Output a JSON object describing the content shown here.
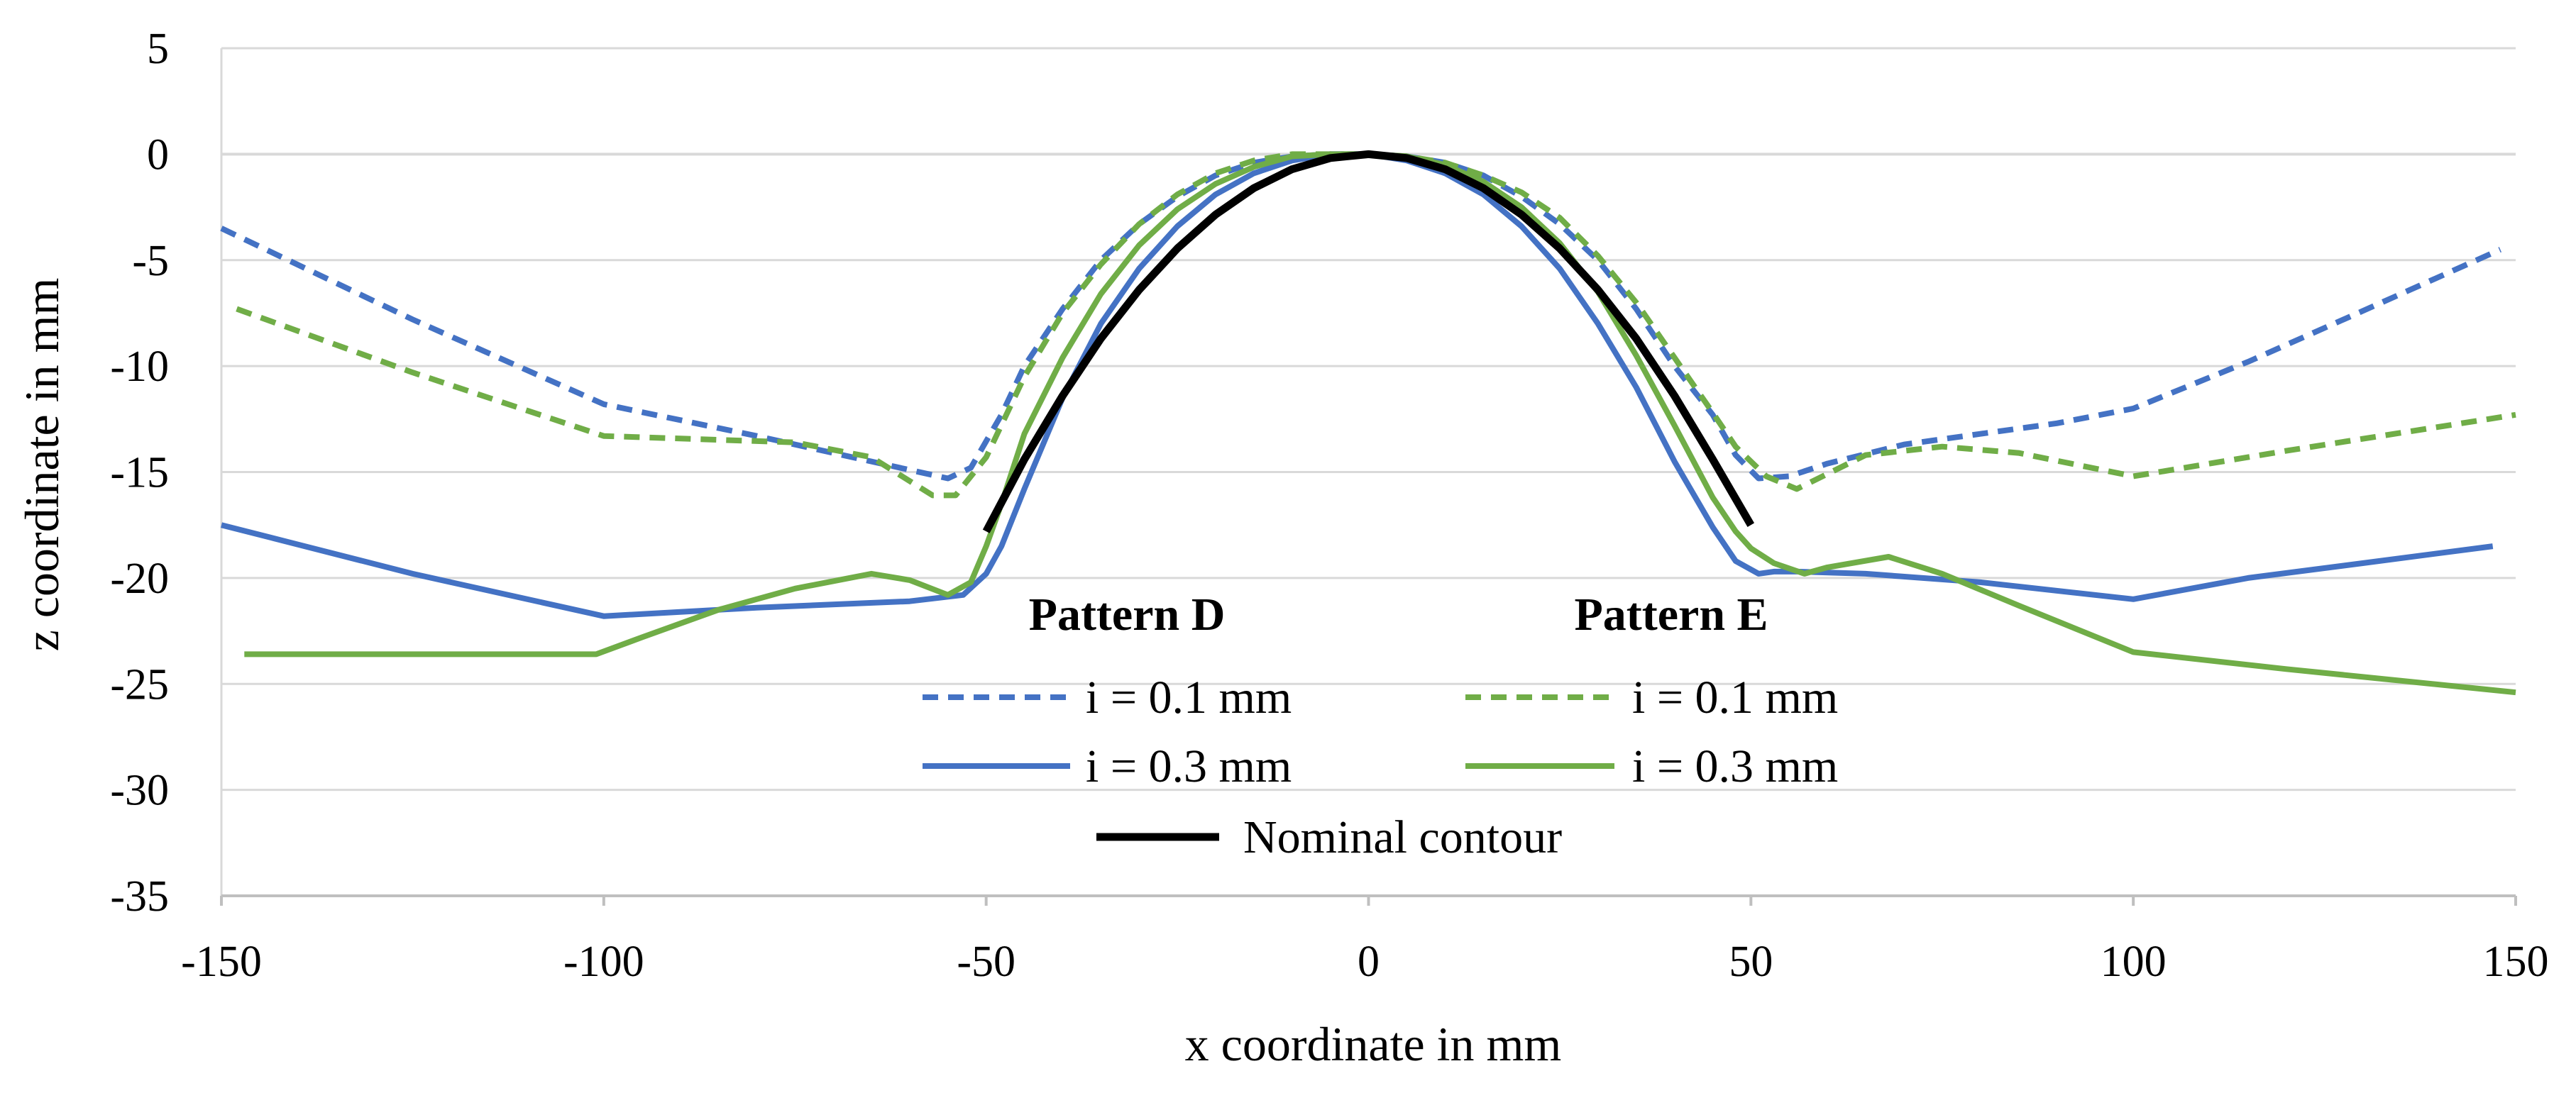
{
  "chart_data": {
    "type": "line",
    "title": "",
    "xlabel": "x coordinate in mm",
    "ylabel": "z coordinate in mm",
    "xlim": [
      -150,
      150
    ],
    "ylim": [
      -35,
      5
    ],
    "xticks": [
      -150,
      -100,
      -50,
      0,
      50,
      100,
      150
    ],
    "yticks": [
      5,
      0,
      -5,
      -10,
      -15,
      -20,
      -25,
      -30,
      -35
    ],
    "xtick_labels": [
      "-150",
      "-100",
      "-50",
      "0",
      "50",
      "100",
      "150"
    ],
    "ytick_labels": [
      "5",
      "0",
      "-5",
      "-10",
      "-15",
      "-20",
      "-25",
      "-30",
      "-35"
    ],
    "grid": "horizontal",
    "legend_groups": [
      "Pattern D",
      "Pattern E"
    ],
    "series": [
      {
        "name": "i = 0.1 mm",
        "group": "Pattern D",
        "color": "#4472C4",
        "dash": "dashed",
        "x": [
          -150,
          -125,
          -100,
          -80,
          -65,
          -55,
          -52,
          -48,
          -45,
          -40,
          -35,
          -30,
          -25,
          -20,
          -15,
          -10,
          -5,
          0,
          5,
          10,
          15,
          20,
          25,
          30,
          35,
          40,
          45,
          48,
          51,
          55,
          60,
          70,
          80,
          90,
          100,
          115,
          130,
          148
        ],
        "y": [
          -3.5,
          -7.8,
          -11.8,
          -13.3,
          -14.5,
          -15.3,
          -14.8,
          -12.3,
          -10.0,
          -7.3,
          -5.0,
          -3.3,
          -2.0,
          -1.0,
          -0.4,
          -0.1,
          0,
          0,
          -0.1,
          -0.4,
          -1.0,
          -2.0,
          -3.3,
          -5.0,
          -7.3,
          -10.0,
          -12.3,
          -14.2,
          -15.3,
          -15.2,
          -14.6,
          -13.7,
          -13.2,
          -12.7,
          -12.0,
          -9.8,
          -7.4,
          -4.5
        ]
      },
      {
        "name": "i = 0.3 mm",
        "group": "Pattern D",
        "color": "#4472C4",
        "dash": "solid",
        "x": [
          -150,
          -125,
          -100,
          -80,
          -60,
          -53,
          -50,
          -48,
          -45,
          -40,
          -35,
          -30,
          -25,
          -20,
          -15,
          -10,
          -5,
          0,
          5,
          10,
          15,
          20,
          25,
          30,
          35,
          40,
          45,
          48,
          51,
          53,
          56,
          65,
          80,
          100,
          115,
          130,
          147
        ],
        "y": [
          -17.5,
          -19.8,
          -21.8,
          -21.4,
          -21.1,
          -20.8,
          -19.8,
          -18.5,
          -15.8,
          -11.5,
          -8.0,
          -5.4,
          -3.4,
          -1.9,
          -0.9,
          -0.3,
          0,
          0,
          -0.3,
          -0.9,
          -1.9,
          -3.4,
          -5.4,
          -8.0,
          -11.0,
          -14.5,
          -17.6,
          -19.2,
          -19.8,
          -19.7,
          -19.7,
          -19.8,
          -20.2,
          -21.0,
          -20.0,
          -19.3,
          -18.5
        ]
      },
      {
        "name": "i = 0.1 mm",
        "group": "Pattern E",
        "color": "#70AD47",
        "dash": "dashed",
        "x": [
          -148,
          -125,
          -100,
          -75,
          -65,
          -57,
          -54,
          -50,
          -45,
          -40,
          -35,
          -30,
          -25,
          -20,
          -15,
          -10,
          -5,
          0,
          5,
          10,
          15,
          20,
          25,
          30,
          35,
          40,
          45,
          48,
          52,
          56,
          65,
          75,
          85,
          100,
          120,
          150
        ],
        "y": [
          -7.3,
          -10.3,
          -13.3,
          -13.6,
          -14.3,
          -16.1,
          -16.1,
          -14.3,
          -10.5,
          -7.5,
          -5.2,
          -3.3,
          -1.9,
          -0.9,
          -0.3,
          0,
          0,
          0,
          -0.1,
          -0.4,
          -1.0,
          -1.8,
          -3.0,
          -4.8,
          -7.0,
          -9.6,
          -12.2,
          -13.8,
          -15.2,
          -15.8,
          -14.2,
          -13.8,
          -14.1,
          -15.2,
          -14.0,
          -12.3
        ]
      },
      {
        "name": "i = 0.3 mm",
        "group": "Pattern E",
        "color": "#70AD47",
        "dash": "solid",
        "x": [
          -147,
          -125,
          -101,
          -95,
          -85,
          -75,
          -65,
          -60,
          -55,
          -52,
          -50,
          -48,
          -45,
          -40,
          -35,
          -30,
          -25,
          -20,
          -15,
          -10,
          -5,
          0,
          5,
          10,
          15,
          20,
          25,
          30,
          35,
          40,
          45,
          48,
          50,
          53,
          57,
          60,
          68,
          75,
          85,
          100,
          120,
          150
        ],
        "y": [
          -23.6,
          -23.6,
          -23.6,
          -22.8,
          -21.5,
          -20.5,
          -19.8,
          -20.1,
          -20.8,
          -20.2,
          -18.5,
          -16.5,
          -13.2,
          -9.6,
          -6.6,
          -4.3,
          -2.6,
          -1.4,
          -0.6,
          -0.1,
          0,
          0,
          -0.1,
          -0.5,
          -1.3,
          -2.5,
          -4.2,
          -6.5,
          -9.5,
          -12.8,
          -16.2,
          -17.8,
          -18.6,
          -19.3,
          -19.8,
          -19.5,
          -19.0,
          -19.8,
          -21.3,
          -23.5,
          -24.3,
          -25.4
        ]
      },
      {
        "name": "Nominal contour",
        "group": "",
        "color": "#000000",
        "dash": "solid",
        "x": [
          -50,
          -45,
          -40,
          -35,
          -30,
          -25,
          -20,
          -15,
          -10,
          -5,
          0,
          5,
          10,
          15,
          20,
          25,
          30,
          35,
          40,
          45,
          50
        ],
        "y": [
          -17.8,
          -14.4,
          -11.4,
          -8.7,
          -6.4,
          -4.45,
          -2.85,
          -1.6,
          -0.71,
          -0.18,
          0,
          -0.18,
          -0.71,
          -1.6,
          -2.85,
          -4.45,
          -6.4,
          -8.7,
          -11.4,
          -14.4,
          -17.5
        ]
      }
    ]
  }
}
